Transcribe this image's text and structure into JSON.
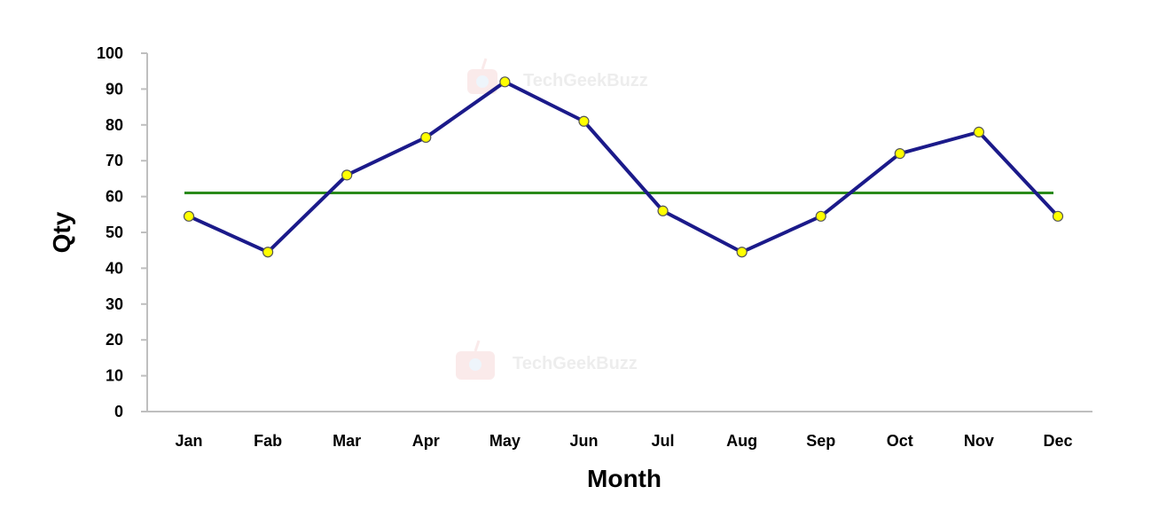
{
  "chart_data": {
    "type": "line",
    "categories": [
      "Jan",
      "Fab",
      "Mar",
      "Apr",
      "May",
      "Jun",
      "Jul",
      "Aug",
      "Sep",
      "Oct",
      "Nov",
      "Dec"
    ],
    "series": [
      {
        "values": [
          54.5,
          44.5,
          66,
          76.5,
          92,
          81,
          56,
          44.5,
          54.5,
          72,
          78,
          54.5
        ],
        "color": "#1b1a8a",
        "marker_fill": "#ffff00"
      }
    ],
    "reference_line": {
      "value": 61,
      "color": "#2a8a1a"
    },
    "title": "",
    "xlabel": "Month",
    "ylabel": "Qty",
    "ylim": [
      0,
      100
    ],
    "yticks": [
      0,
      10,
      20,
      30,
      40,
      50,
      60,
      70,
      80,
      90,
      100
    ],
    "grid": false,
    "legend": "none"
  },
  "watermark": {
    "text": "TechGeekBuzz",
    "icon": "robot-logo-icon"
  }
}
